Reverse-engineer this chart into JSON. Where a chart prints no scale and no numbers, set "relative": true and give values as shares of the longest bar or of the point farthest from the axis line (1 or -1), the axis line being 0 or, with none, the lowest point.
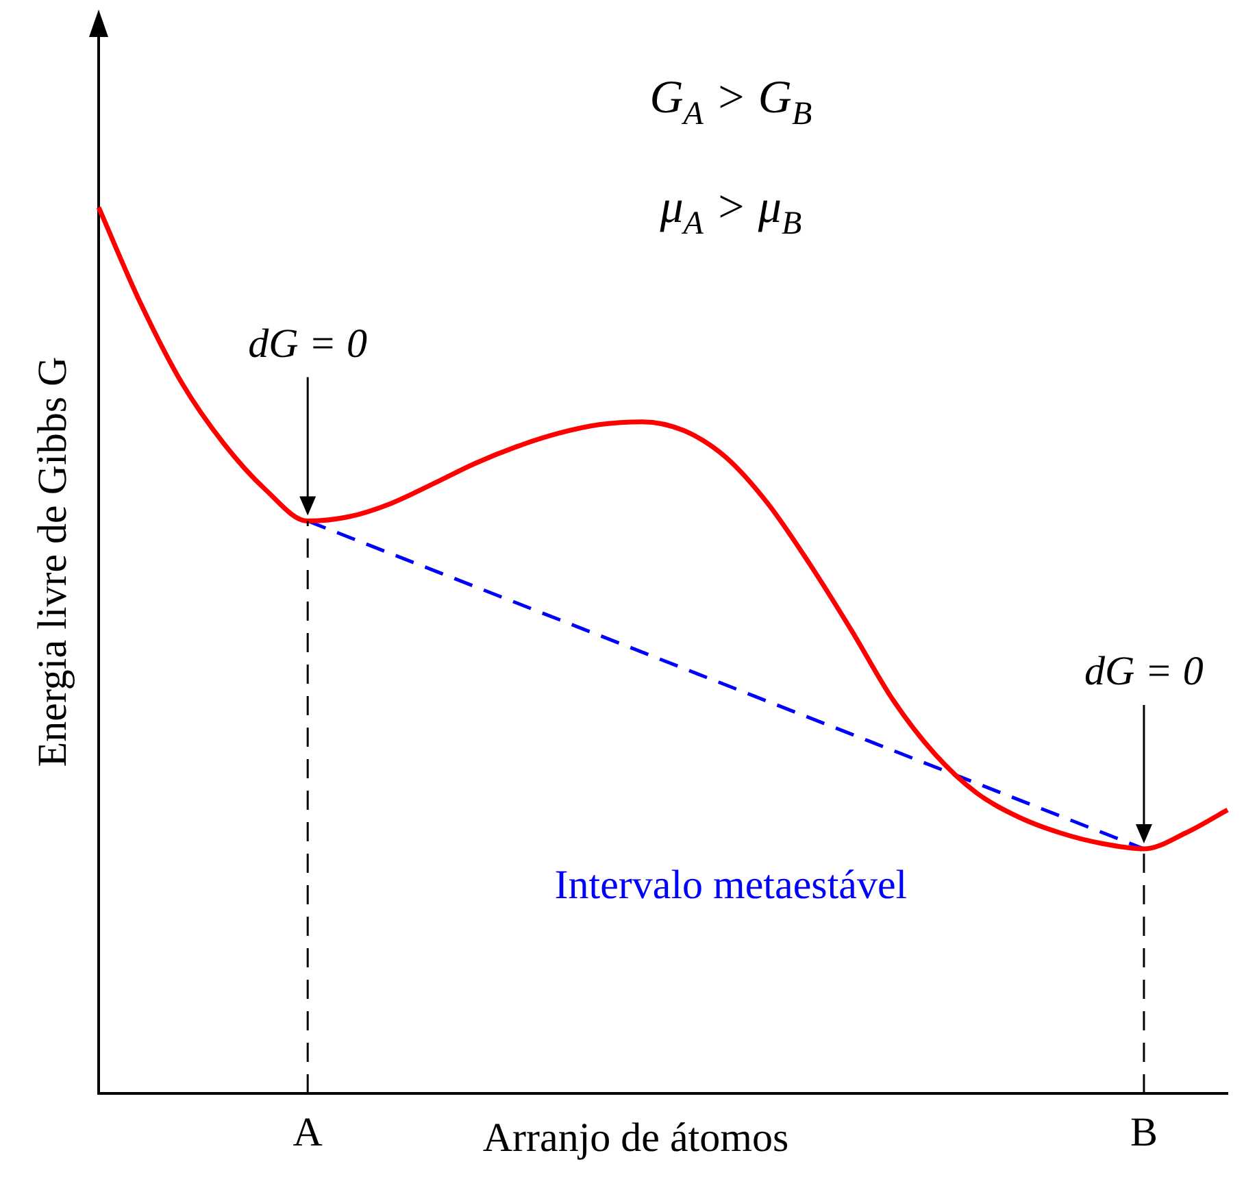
{
  "chart_data": {
    "type": "line",
    "relative": true,
    "xlabel": "Arranjo de átomos",
    "ylabel": "Energia livre de Gibbs G",
    "categories": [
      null,
      null,
      null,
      null,
      null,
      "A",
      null,
      null,
      null,
      null,
      null,
      null,
      null,
      null,
      null,
      null,
      null,
      null,
      null,
      null,
      null,
      null,
      null,
      null,
      null,
      "B",
      null,
      null
    ],
    "series": [
      {
        "color": "#ff0000",
        "line_style": "solid",
        "values": [
          1.0,
          0.892,
          0.801,
          0.733,
          0.681,
          0.646,
          0.651,
          0.666,
          0.688,
          0.711,
          0.73,
          0.745,
          0.755,
          0.758,
          0.748,
          0.718,
          0.666,
          0.598,
          0.523,
          0.444,
          0.383,
          0.339,
          0.312,
          0.294,
          0.282,
          0.276,
          0.294,
          0.32
        ]
      },
      {
        "color": "#0000ff",
        "line_style": "dashed",
        "values": [
          null,
          null,
          null,
          null,
          null,
          0.646,
          null,
          null,
          null,
          null,
          null,
          null,
          null,
          null,
          null,
          null,
          null,
          null,
          null,
          null,
          null,
          null,
          null,
          null,
          null,
          0.276,
          null,
          null
        ]
      }
    ],
    "ref_lines": [
      {
        "axis": "x",
        "value": "A",
        "label": null,
        "color": "#000000",
        "line_style": "dashed"
      },
      {
        "axis": "x",
        "value": "B",
        "label": null,
        "color": "#000000",
        "line_style": "dashed"
      }
    ],
    "annotations": [
      "G$_{A}$ > G$_{B}$",
      "μ$_{A}$ > μ$_{B}$",
      "Intervalo metaestável",
      "dG = 0",
      "dG = 0"
    ],
    "legend": false,
    "grid": false,
    "marker": "none"
  }
}
